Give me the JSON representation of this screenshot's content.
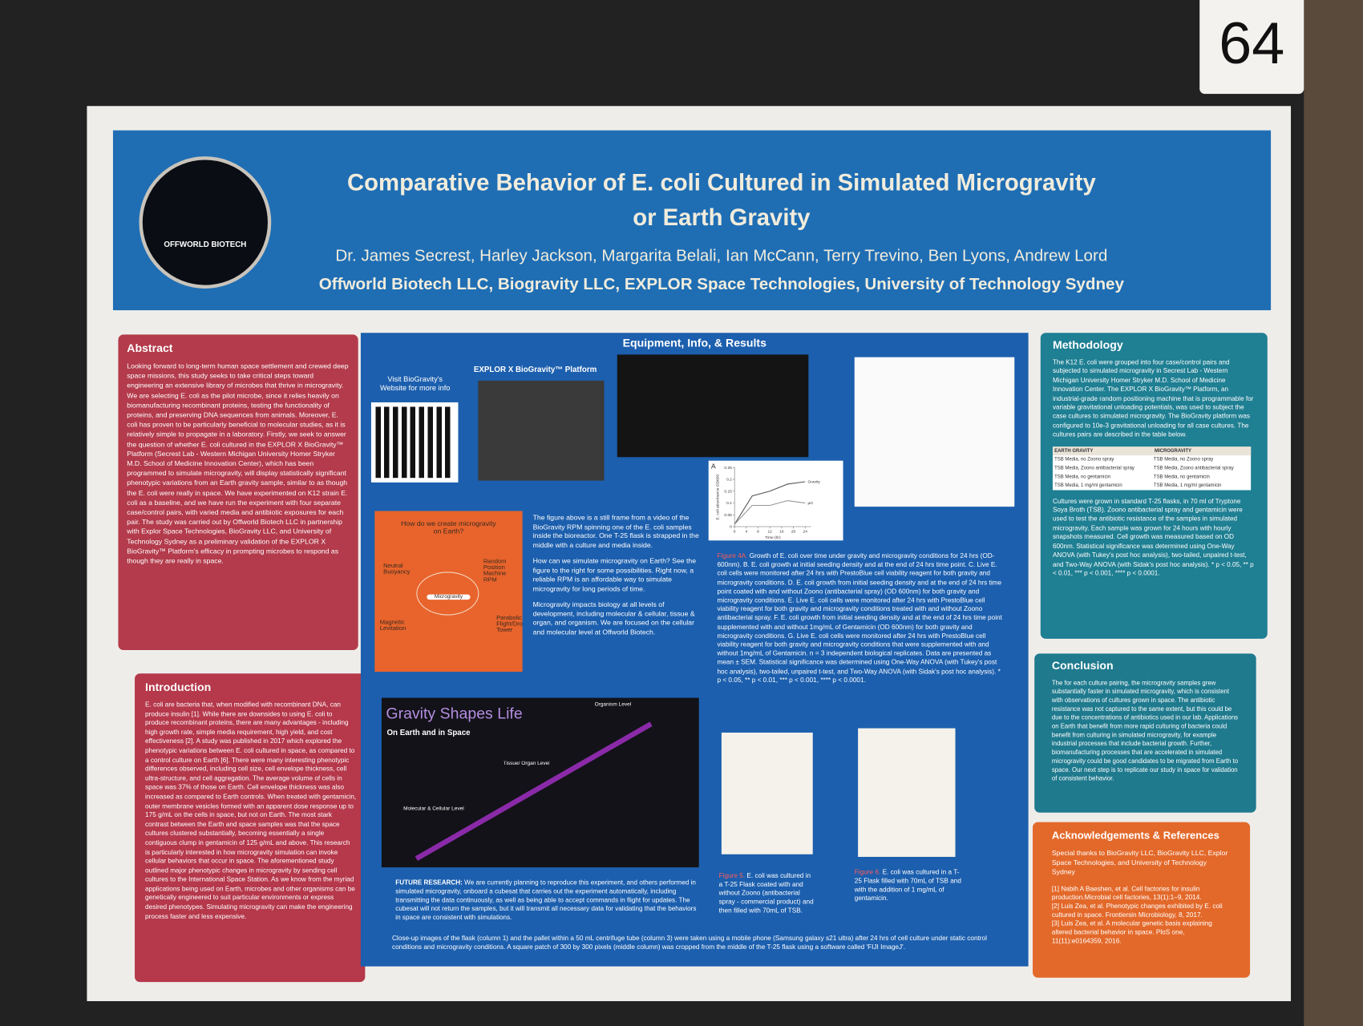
{
  "board_number": "64",
  "header": {
    "logo_text": "OFFWORLD BIOTECH",
    "title_line1": "Comparative Behavior of E. coli Cultured in Simulated Microgravity",
    "title_line2": "or Earth Gravity",
    "authors": "Dr. James Secrest, Harley Jackson, Margarita Belali, Ian McCann, Terry Trevino, Ben Lyons, Andrew Lord",
    "affiliations": "Offworld Biotech LLC, Biogravity LLC, EXPLOR Space Technologies, University of Technology Sydney"
  },
  "abstract": {
    "heading": "Abstract",
    "text": "Looking forward to long-term human space settlement and crewed deep space missions, this study seeks to take critical steps toward engineering an extensive library of microbes that thrive in microgravity. We are selecting E. coli as the pilot microbe, since it relies heavily on biomanufacturing recombinant proteins, testing the functionality of proteins, and preserving DNA sequences from animals. Moreover, E. coli has proven to be particularly beneficial to molecular studies, as it is relatively simple to propagate in a laboratory. Firstly, we seek to answer the question of whether E. coli cultured in the EXPLOR X BioGravity™ Platform (Secrest Lab - Western Michigan University Homer Stryker M.D. School of Medicine Innovation Center), which has been programmed to simulate microgravity, will display statistically significant phenotypic variations from an Earth gravity sample, similar to as though the E. coli were really in space. We have experimented on K12 strain E. coli as a baseline, and we have run the experiment with four separate case/control pairs, with varied media and antibiotic exposures for each pair. The study was carried out by Offworld Biotech LLC in partnership with Explor Space Technologies, BioGravity LLC, and University of Technology Sydney as a preliminary validation of the EXPLOR X BioGravity™ Platform's efficacy in prompting microbes to respond as though they are really in space."
  },
  "introduction": {
    "heading": "Introduction",
    "text": "E. coli are bacteria that, when modified with recombinant DNA, can produce insulin [1]. While there are downsides to using E. coli to produce recombinant proteins, there are many advantages - including high growth rate, simple media requirement, high yield, and cost effectiveness [2]. A study was published in 2017 which explored the phenotypic variations between E. coli cultured in space, as compared to a control culture on Earth [6]. There were many interesting phenotypic differences observed, including cell size, cell envelope thickness, cell ultra-structure, and cell aggregation. The average volume of cells in space was 37% of those on Earth. Cell envelope thickness was also increased as compared to Earth controls. When treated with gentamicin, outer membrane vesicles formed with an apparent dose response up to 175 g/mL on the cells in space, but not on Earth. The most stark contrast between the Earth and space samples was that the space cultures clustered substantially, becoming essentially a single contiguous clump in gentamicin of 125 g/mL and above. This research is particularly interested in how microgravity simulation can invoke cellular behaviors that occur in space. The aforementioned study outlined major phenotypic changes in microgravity by sending cell cultures to the International Space Station. As we know from the myriad applications being used on Earth, microbes and other organisms can be genetically engineered to suit particular environments or express desired phenotypes. Simulating microgravity can make the engineering process faster and less expensive."
  },
  "center": {
    "heading": "Equipment, Info, & Results",
    "qr_caption": "Visit BioGravity's Website for more info",
    "platform_caption": "EXPLOR X BioGravity™ Platform",
    "video_paragraphs": [
      "The figure above is a still frame from a video of the BioGravity RPM spinning one of the E. coli samples inside the bioreactor. One T-25 flask is strapped in the middle with a culture and media inside.",
      "How can we simulate microgravity on Earth? See the figure to the right for some possibilities. Right now, a reliable RPM is an affordable way to simulate microgravity for long periods of time.",
      "Microgravity impacts biology at all levels of development, including molecular & cellular, tissue & organ, and organism. We are focused on the cellular and molecular level at Offworld Biotech."
    ],
    "methods_graphic": {
      "title": "How do we create microgravity on Earth?",
      "center": "Microgravity",
      "items": [
        "Neutral Buoyancy",
        "Random Position Machine RPM",
        "Magnetic Levitation",
        "Parabolic Flight/Drop Tower"
      ]
    },
    "gravity_graphic": {
      "title": "Gravity Shapes Life",
      "subtitle": "On Earth and in Space",
      "levels": [
        "Molecular & Cellular Level",
        "Tissue/ Organ Level",
        "Organism Level"
      ]
    },
    "figure_4a": {
      "label": "A",
      "ylabel": "E. coli absorbance OD600",
      "xlabel": "Time (hr)",
      "xlim": [
        0,
        26
      ],
      "ylim": [
        0,
        0.25
      ],
      "xticks": [
        0,
        4,
        8,
        12,
        16,
        20,
        24
      ],
      "yticks": [
        0,
        0.05,
        0.1,
        0.15,
        0.2,
        0.25
      ],
      "x": [
        0,
        6,
        12,
        18,
        24
      ],
      "series": [
        {
          "name": "Gravity",
          "color": "#555555",
          "values": [
            0.01,
            0.13,
            0.15,
            0.18,
            0.19
          ]
        },
        {
          "name": "µG",
          "color": "#999999",
          "values": [
            0.01,
            0.09,
            0.09,
            0.11,
            0.1
          ]
        }
      ]
    },
    "figure4_caption": {
      "label": "Figure 4A.",
      "text": "Growth of E. coli over time under gravity and microgravity conditions for 24 hrs (OD-600nm). B. E. coli growth at initial seeding density and at the end of 24 hrs time point. C. Live E. coli cells were monitored after 24 hrs with PrestoBlue cell viability reagent for both gravity and microgravity conditions. D. E. coli growth from initial seeding density and at the end of 24 hrs time point coated with and without Zoono (antibacterial spray) (OD 600nm) for both gravity and microgravity conditions. E. Live E. coli cells were monitored after 24 hrs with PrestoBlue cell viability reagent for both gravity and microgravity conditions treated with and without Zoono antibacterial spray. F. E. coli growth from initial seeding density and at the end of 24 hrs time point supplemented with and without 1mg/mL of Gentamicin (OD 600nm) for both gravity and microgravity conditions. G. Live E. coli cells were monitored after 24 hrs with PrestoBlue cell viability reagent for both gravity and microgravity conditions that were supplemented with and without 1mg/mL of Gentamicin. n = 3 independent biological replicates. Data are presented as mean ± SEM. Statistical significance was determined using One-Way ANOVA (with Tukey's post hoc analysis), two-tailed, unpaired t-test, and Two-Way ANOVA (with Sidak's post hoc analysis). * p < 0.05, ** p < 0.01, *** p < 0.001, **** p < 0.0001."
    },
    "figure5_caption": {
      "label": "Figure 5.",
      "text": "E. coli was cultured in a T-25 Flask coated with and without Zoono (antibacterial spray - commercial product) and then filled with 70mL of TSB."
    },
    "figure6_caption": {
      "label": "Figure 6.",
      "text": "E. coli was cultured in a T-25 Flask filled with 70mL of TSB and with the addition of 1 mg/mL of gentamicin."
    },
    "future_research": {
      "label": "FUTURE RESEARCH:",
      "text": "We are currently planning to reproduce this experiment, and others performed in simulated microgravity, onboard a cubesat that carries out the experiment automatically, including transmitting the data continuously, as well as being able to accept commands in flight for updates. The cubesat will not return the samples, but it will transmit all necessary data for validating that the behaviors in space are consistent with simulations."
    },
    "closing_text": "Close-up images of the flask (column 1) and the pallet within a 50 mL centrifuge tube (column 3) were taken using a mobile phone (Samsung galaxy s21 ultra) after 24 hrs of cell culture under static control conditions and microgravity conditions. A square patch of 300 by 300 pixels (middle column) was cropped from the middle of the T-25 flask using a software called 'FIJI ImageJ'."
  },
  "methodology": {
    "heading": "Methodology",
    "text": "The K12 E. coli were grouped into four case/control pairs and subjected to simulated microgravity in Secrest Lab - Western Michigan University Homer Stryker M.D. School of Medicine Innovation Center. The EXPLOR X BioGravity™ Platform, an industrial-grade random positioning machine that is programmable for variable gravitational unloading potentials, was used to subject the case cultures to simulated microgravity. The BioGravity platform was configured to 10e-3 gravitational unloading for all case cultures. The cultures pairs are described in the table below.",
    "table": {
      "header": [
        "EARTH GRAVITY",
        "MICROGRAVITY"
      ],
      "rows": [
        [
          "TSB Media, no Zoono spray",
          "TSB Media, no Zoono spray"
        ],
        [
          "TSB Media, Zoono antibacterial spray",
          "TSB Media, Zoono antibacterial spray"
        ],
        [
          "TSB Media, no gentamicin",
          "TSB Media, no gentamicin"
        ],
        [
          "TSB Media, 1 mg/ml gentamicin",
          "TSB Media, 1 mg/ml gentamicin"
        ]
      ]
    },
    "text2": "Cultures were grown in standard T-25 flasks, in 70 ml of Tryptone Soya Broth (TSB). Zoono antibacterial spray and gentamicin were used to test the antibiotic resistance of the samples in simulated microgravity. Each sample was grown for 24 hours with hourly snapshots measured. Cell growth was measured based on OD 600nm. Statistical significance was determined using One-Way ANOVA (with Tukey's post hoc analysis), two-tailed, unpaired t-test, and Two-Way ANOVA (with Sidak's post hoc analysis). * p < 0.05, ** p < 0.01, *** p < 0.001, **** p < 0.0001."
  },
  "conclusion": {
    "heading": "Conclusion",
    "text": "The for each culture pairing, the microgravity samples grew substantially faster in simulated microgravity, which is consistent with observations of cultures grown in space. The antibiotic resistance was not captured to the same extent, but this could be due to the concentrations of antibiotics used in our lab. Applications on Earth that benefit from more rapid culturing of bacteria could benefit from culturing in simulated microgravity, for example industrial processes that include bacterial growth. Further, biomanufacturing processes that are accelerated in simulated microgravity could be good candidates to be migrated from Earth to space. Our next step is to replicate our study in space for validation of consistent behavior."
  },
  "acknowledgements": {
    "heading": "Acknowledgements & References",
    "text": "Special thanks to BioGravity LLC, BioGravity LLC, Explor Space Technologies, and University of Technology Sydney",
    "references": [
      "[1] Nabih A Baeshen, et al. Cell factories for insulin production.Microbial cell factories, 13(1):1–9, 2014.",
      "[2] Luis Zea, et al. Phenotypic changes exhibited by E. coli cultured in space. Frontiersin Microbiology, 8, 2017.",
      "[3] Luis Zea, et al. A molecular genetic basis explaining altered bacterial behavior in space. PloS one, 11(11):e0164359, 2016."
    ]
  }
}
